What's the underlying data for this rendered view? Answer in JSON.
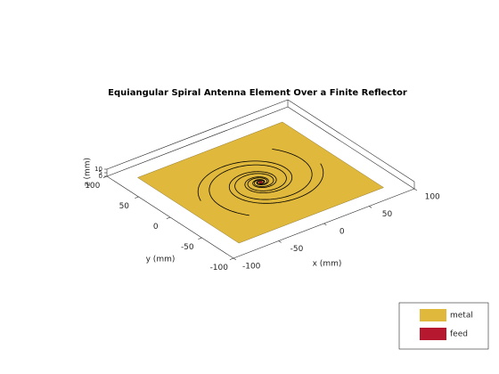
{
  "title": "Equiangular Spiral Antenna Element Over a Finite Reflector",
  "axes": {
    "x_label": "x (mm)",
    "y_label": "y (mm)",
    "z_label": "z (mm)",
    "xlim": [
      -100,
      100
    ],
    "ylim": [
      -100,
      100
    ],
    "zlim": [
      0,
      10
    ],
    "xticks": [
      -100,
      -50,
      0,
      50,
      100
    ],
    "yticks": [
      -100,
      -50,
      0,
      50,
      100
    ],
    "zticks": [
      0,
      5,
      10
    ]
  },
  "legend": [
    {
      "label": "metal",
      "color": "#e0b83c"
    },
    {
      "label": "feed",
      "color": "#b5182f"
    }
  ]
}
